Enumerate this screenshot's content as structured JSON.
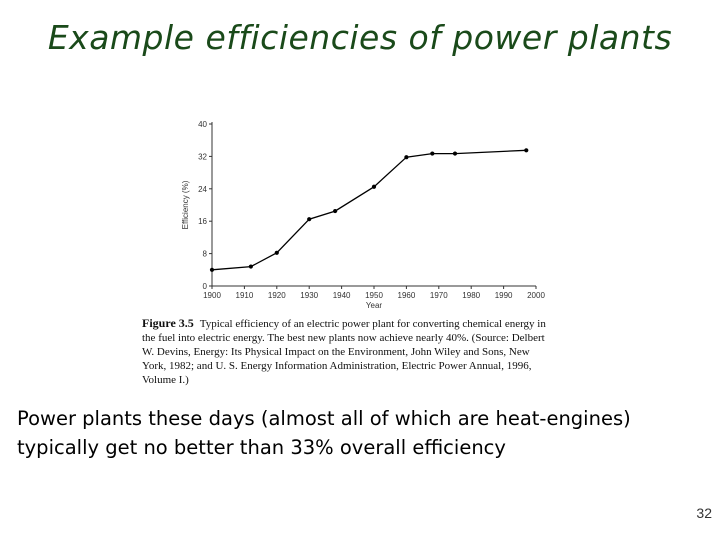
{
  "slide": {
    "title": "Example efficiencies of power plants",
    "body_line_1": "Power plants these days (almost all of which are heat-engines)",
    "body_line_2": "typically get no better than 33% overall efficiency",
    "page_number": "32"
  },
  "caption": {
    "figure_label": "Figure 3.5",
    "lines": [
      "Typical efficiency of an electric power plant for converting chemical energy in",
      "the fuel into electric energy. The best new plants now achieve nearly 40%. (Source: Delbert",
      "W. Devins, Energy: Its Physical Impact on the Environment, John Wiley and Sons, New",
      "York, 1982; and U. S. Energy Information Administration, Electric Power Annual, 1996,",
      "Volume I.)"
    ]
  },
  "chart_data": {
    "type": "line",
    "title": "",
    "xlabel": "Year",
    "ylabel": "Efficiency (%)",
    "xlim": [
      1900,
      2000
    ],
    "ylim": [
      0,
      40
    ],
    "x_ticks": [
      1900,
      1910,
      1920,
      1930,
      1940,
      1950,
      1960,
      1970,
      1980,
      1990,
      2000
    ],
    "y_ticks": [
      0,
      8,
      16,
      24,
      32,
      40
    ],
    "grid": false,
    "series": [
      {
        "x": [
          1900,
          1912,
          1920,
          1930,
          1938,
          1950,
          1960,
          1968,
          1975,
          1997
        ],
        "y": [
          4,
          4.8,
          8.2,
          16.5,
          18.5,
          24.5,
          31.8,
          32.7,
          32.7,
          33.5
        ]
      }
    ],
    "colors": {
      "line": "#000000",
      "axis": "#333333"
    }
  }
}
